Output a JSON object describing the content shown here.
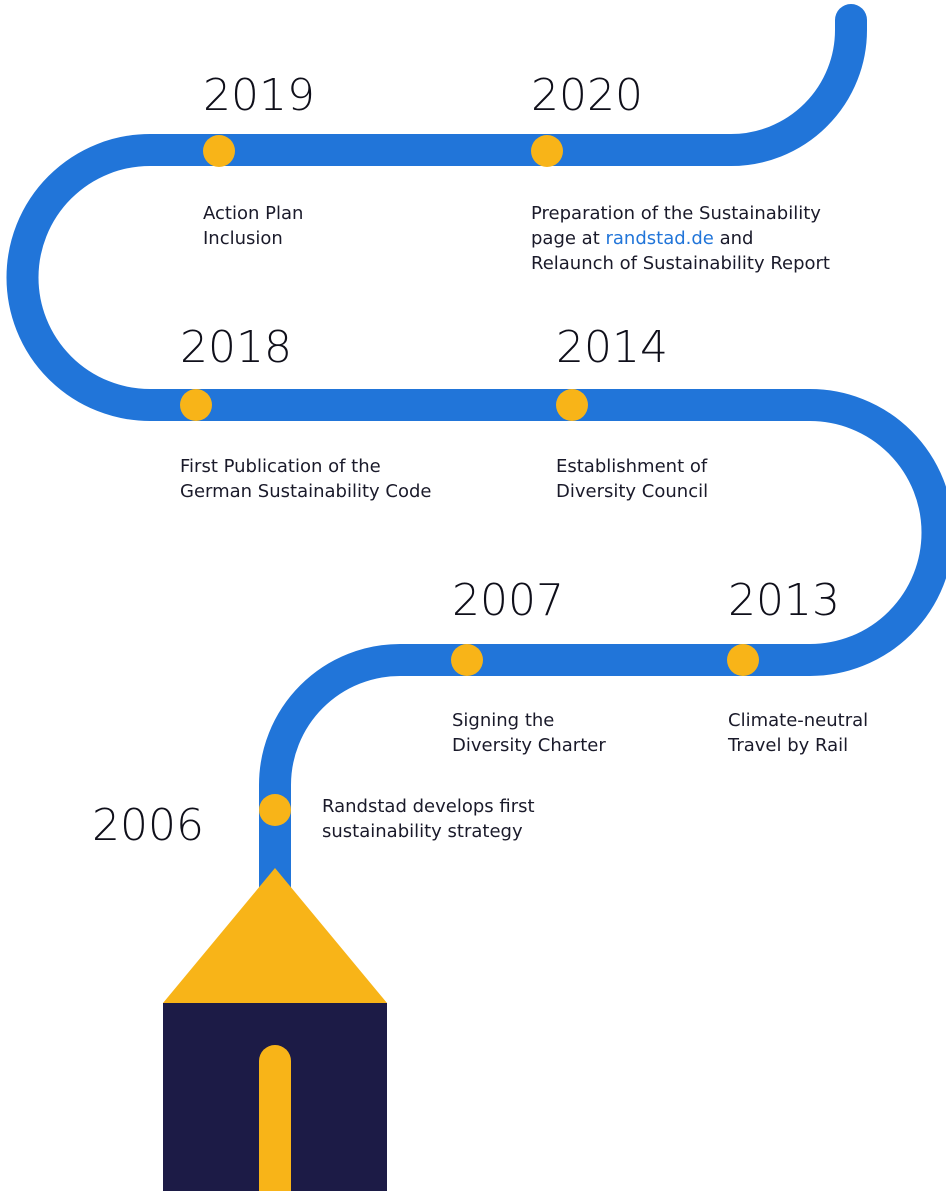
{
  "milestones": [
    {
      "year": "2019",
      "lines": [
        "Action Plan",
        "Inclusion"
      ]
    },
    {
      "year": "2020",
      "lines": [
        "Preparation of the Sustainability",
        {
          "before": "page at ",
          "link": "randstad.de",
          "after": " and"
        },
        "Relaunch of Sustainability Report"
      ]
    },
    {
      "year": "2018",
      "lines": [
        "First Publication of the",
        "German Sustainability Code"
      ]
    },
    {
      "year": "2014",
      "lines": [
        "Establishment of",
        "Diversity Council"
      ]
    },
    {
      "year": "2007",
      "lines": [
        "Signing the",
        "Diversity Charter"
      ]
    },
    {
      "year": "2013",
      "lines": [
        "Climate-neutral",
        "Travel by Rail"
      ]
    },
    {
      "year": "2006",
      "lines": [
        "Randstad develops first",
        "sustainability strategy"
      ]
    }
  ]
}
